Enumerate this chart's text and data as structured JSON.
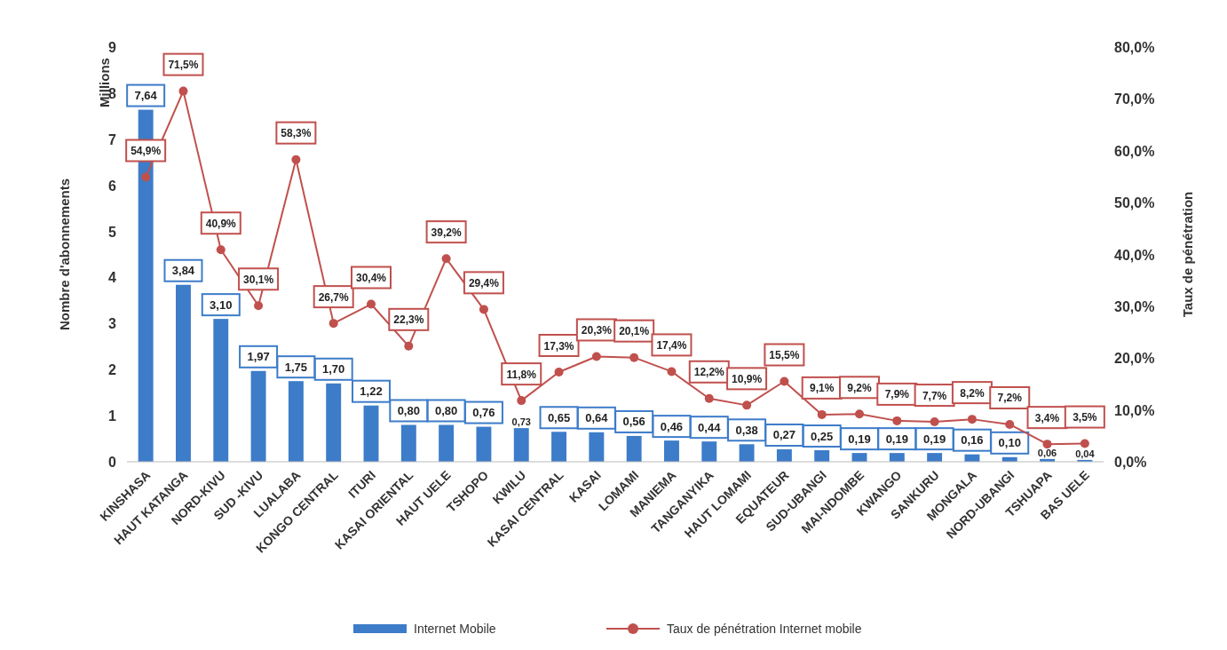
{
  "chart_data": {
    "type": "bar",
    "ylabel": "Nombre d'abonnements",
    "y2label": "Taux de pénétration",
    "annotations": [
      "Millions"
    ],
    "categories": [
      "KINSHASA",
      "HAUT KATANGA",
      "NORD-KIVU",
      "SUD -KIVU",
      "LUALABA",
      "KONGO CENTRAL",
      "ITURI",
      "KASAI ORIENTAL",
      "HAUT UELE",
      "TSHOPO",
      "KWILU",
      "KASAI CENTRAL",
      "KASAI",
      "LOMAMI",
      "MANIEMA",
      "TANGANYIKA",
      "HAUT LOMAMI",
      "EQUATEUR",
      "SUD-UBANGI",
      "MAI-NDOMBE",
      "KWANGO",
      "SANKURU",
      "MONGALA",
      "NORD-UBANGI",
      "TSHUAPA",
      "BAS UELE"
    ],
    "series": [
      {
        "name": "Internet Mobile",
        "type": "bar",
        "color": "#3d7cc9",
        "values": [
          7.64,
          3.84,
          3.1,
          1.97,
          1.75,
          1.7,
          1.22,
          0.8,
          0.8,
          0.76,
          0.73,
          0.65,
          0.64,
          0.56,
          0.46,
          0.44,
          0.38,
          0.27,
          0.25,
          0.19,
          0.19,
          0.19,
          0.16,
          0.1,
          0.06,
          0.04
        ],
        "value_labels": [
          "7,64",
          "3,84",
          "3,10",
          "1,97",
          "1,75",
          "1,70",
          "1,22",
          "0,80",
          "0,80",
          "0,76",
          "0,73",
          "0,65",
          "0,64",
          "0,56",
          "0,46",
          "0,44",
          "0,38",
          "0,27",
          "0,25",
          "0,19",
          "0,19",
          "0,19",
          "0,16",
          "0,10",
          "0,06",
          "0,04"
        ]
      },
      {
        "name": "Taux de pénétration Internet mobile",
        "type": "line",
        "axis": "y2",
        "color": "#c0504d",
        "marker": "circle",
        "values": [
          54.9,
          71.5,
          40.9,
          30.1,
          58.3,
          26.7,
          30.4,
          22.3,
          39.2,
          29.4,
          11.8,
          17.3,
          20.3,
          20.1,
          17.4,
          12.2,
          10.9,
          15.5,
          9.1,
          9.2,
          7.9,
          7.7,
          8.2,
          7.2,
          3.4,
          3.5
        ],
        "value_labels": [
          "54,9%",
          "71,5%",
          "40,9%",
          "30,1%",
          "58,3%",
          "26,7%",
          "30,4%",
          "22,3%",
          "39,2%",
          "29,4%",
          "11,8%",
          "17,3%",
          "20,3%",
          "20,1%",
          "17,4%",
          "12,2%",
          "10,9%",
          "15,5%",
          "9,1%",
          "9,2%",
          "7,9%",
          "7,7%",
          "8,2%",
          "7,2%",
          "3,4%",
          "3,5%"
        ]
      }
    ],
    "ylim": [
      0,
      9
    ],
    "yticks": [
      0,
      1,
      2,
      3,
      4,
      5,
      6,
      7,
      8,
      9
    ],
    "y2lim": [
      0,
      80
    ],
    "y2ticks": [
      {
        "value": 0,
        "label": "0,0%"
      },
      {
        "value": 10,
        "label": "10,0%"
      },
      {
        "value": 20,
        "label": "20,0%"
      },
      {
        "value": 30,
        "label": "30,0%"
      },
      {
        "value": 40,
        "label": "40,0%"
      },
      {
        "value": 50,
        "label": "50,0%"
      },
      {
        "value": 60,
        "label": "60,0%"
      },
      {
        "value": 70,
        "label": "70,0%"
      },
      {
        "value": 80,
        "label": "80,0%"
      }
    ],
    "grid": false,
    "legend": "bottom"
  }
}
